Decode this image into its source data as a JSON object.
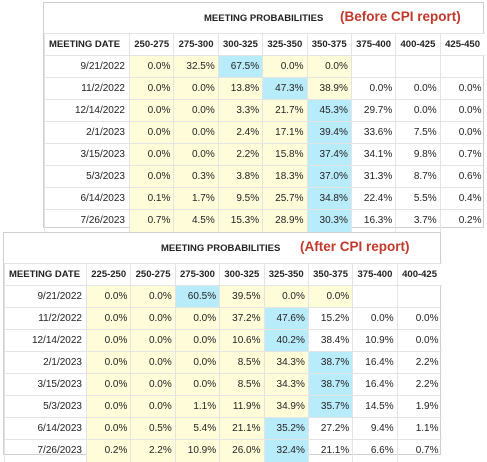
{
  "before": {
    "title": "MEETING PROBABILITIES",
    "note": "(Before CPI report)",
    "date_header": "MEETING DATE",
    "columns": [
      "250-275",
      "275-300",
      "300-325",
      "325-350",
      "350-375",
      "375-400",
      "400-425",
      "425-450"
    ],
    "rows": [
      {
        "date": "9/21/2022",
        "cells": [
          "0.0%",
          "32.5%",
          "67.5%",
          "0.0%",
          "0.0%",
          "",
          "",
          ""
        ]
      },
      {
        "date": "11/2/2022",
        "cells": [
          "0.0%",
          "0.0%",
          "13.8%",
          "47.3%",
          "38.9%",
          "0.0%",
          "0.0%",
          "0.0%"
        ]
      },
      {
        "date": "12/14/2022",
        "cells": [
          "0.0%",
          "0.0%",
          "3.3%",
          "21.7%",
          "45.3%",
          "29.7%",
          "0.0%",
          "0.0%"
        ]
      },
      {
        "date": "2/1/2023",
        "cells": [
          "0.0%",
          "0.0%",
          "2.4%",
          "17.1%",
          "39.4%",
          "33.6%",
          "7.5%",
          "0.0%"
        ]
      },
      {
        "date": "3/15/2023",
        "cells": [
          "0.0%",
          "0.0%",
          "2.2%",
          "15.8%",
          "37.4%",
          "34.1%",
          "9.8%",
          "0.7%"
        ]
      },
      {
        "date": "5/3/2023",
        "cells": [
          "0.0%",
          "0.3%",
          "3.8%",
          "18.3%",
          "37.0%",
          "31.3%",
          "8.7%",
          "0.6%"
        ]
      },
      {
        "date": "6/14/2023",
        "cells": [
          "0.1%",
          "1.7%",
          "9.5%",
          "25.7%",
          "34.8%",
          "22.4%",
          "5.5%",
          "0.4%"
        ]
      },
      {
        "date": "7/26/2023",
        "cells": [
          "0.7%",
          "4.5%",
          "15.3%",
          "28.9%",
          "30.3%",
          "16.3%",
          "3.7%",
          "0.2%"
        ]
      }
    ],
    "highlights": [
      [
        "y",
        "y",
        "b",
        "y",
        "y",
        "",
        "",
        ""
      ],
      [
        "y",
        "y",
        "y",
        "b",
        "y",
        "",
        "",
        ""
      ],
      [
        "y",
        "y",
        "y",
        "y",
        "b",
        "",
        "",
        ""
      ],
      [
        "y",
        "y",
        "y",
        "y",
        "b",
        "",
        "",
        ""
      ],
      [
        "y",
        "y",
        "y",
        "y",
        "b",
        "",
        "",
        ""
      ],
      [
        "y",
        "y",
        "y",
        "y",
        "b",
        "",
        "",
        ""
      ],
      [
        "y",
        "y",
        "y",
        "y",
        "b",
        "",
        "",
        ""
      ],
      [
        "y",
        "y",
        "y",
        "y",
        "b",
        "",
        "",
        ""
      ]
    ]
  },
  "after": {
    "title": "MEETING PROBABILITIES",
    "note": "(After CPI report)",
    "date_header": "MEETING DATE",
    "columns": [
      "225-250",
      "250-275",
      "275-300",
      "300-325",
      "325-350",
      "350-375",
      "375-400",
      "400-425"
    ],
    "rows": [
      {
        "date": "9/21/2022",
        "cells": [
          "0.0%",
          "0.0%",
          "60.5%",
          "39.5%",
          "0.0%",
          "0.0%",
          "",
          ""
        ]
      },
      {
        "date": "11/2/2022",
        "cells": [
          "0.0%",
          "0.0%",
          "0.0%",
          "37.2%",
          "47.6%",
          "15.2%",
          "0.0%",
          "0.0%"
        ]
      },
      {
        "date": "12/14/2022",
        "cells": [
          "0.0%",
          "0.0%",
          "0.0%",
          "10.6%",
          "40.2%",
          "38.4%",
          "10.9%",
          "0.0%"
        ]
      },
      {
        "date": "2/1/2023",
        "cells": [
          "0.0%",
          "0.0%",
          "0.0%",
          "8.5%",
          "34.3%",
          "38.7%",
          "16.4%",
          "2.2%"
        ]
      },
      {
        "date": "3/15/2023",
        "cells": [
          "0.0%",
          "0.0%",
          "0.0%",
          "8.5%",
          "34.3%",
          "38.7%",
          "16.4%",
          "2.2%"
        ]
      },
      {
        "date": "5/3/2023",
        "cells": [
          "0.0%",
          "0.0%",
          "1.1%",
          "11.9%",
          "34.9%",
          "35.7%",
          "14.5%",
          "1.9%"
        ]
      },
      {
        "date": "6/14/2023",
        "cells": [
          "0.0%",
          "0.5%",
          "5.4%",
          "21.1%",
          "35.2%",
          "27.2%",
          "9.4%",
          "1.1%"
        ]
      },
      {
        "date": "7/26/2023",
        "cells": [
          "0.2%",
          "2.2%",
          "10.9%",
          "26.0%",
          "32.4%",
          "21.1%",
          "6.6%",
          "0.7%"
        ]
      }
    ],
    "highlights": [
      [
        "y",
        "y",
        "b",
        "y",
        "y",
        "y",
        "",
        ""
      ],
      [
        "y",
        "y",
        "y",
        "y",
        "b",
        "",
        "",
        ""
      ],
      [
        "y",
        "y",
        "y",
        "y",
        "b",
        "",
        "",
        ""
      ],
      [
        "y",
        "y",
        "y",
        "y",
        "y",
        "b",
        "",
        ""
      ],
      [
        "y",
        "y",
        "y",
        "y",
        "y",
        "b",
        "",
        ""
      ],
      [
        "y",
        "y",
        "y",
        "y",
        "y",
        "b",
        "",
        ""
      ],
      [
        "y",
        "y",
        "y",
        "y",
        "b",
        "",
        "",
        ""
      ],
      [
        "y",
        "y",
        "y",
        "y",
        "b",
        "",
        "",
        ""
      ]
    ]
  },
  "colors": {
    "highlight_yellow": "#fffdd9",
    "highlight_blue": "#b9ecfa",
    "note_red": "#c0392b"
  }
}
